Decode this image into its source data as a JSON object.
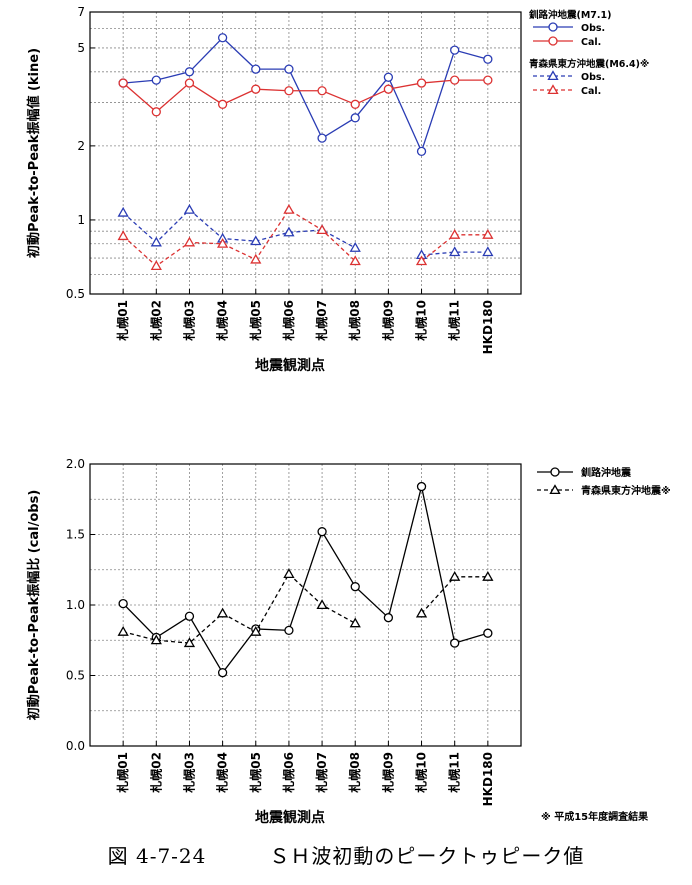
{
  "chart_data": [
    {
      "type": "line",
      "title": "",
      "xlabel": "地震観測点",
      "ylabel": "初動Peak-to-Peak振幅値 (kine)",
      "yscale": "log",
      "ylim": [
        0.5,
        7
      ],
      "yticks": [
        0.5,
        1,
        2,
        5,
        7
      ],
      "yticklabels": [
        "0.5",
        "1",
        "2",
        "5",
        "7"
      ],
      "grid": true,
      "legend_position": "right",
      "categories": [
        "札幌01",
        "札幌02",
        "札幌03",
        "札幌04",
        "札幌05",
        "札幌06",
        "札幌07",
        "札幌08",
        "札幌09",
        "札幌10",
        "札幌11",
        "HKD180"
      ],
      "legend_groups": [
        {
          "title": "釧路沖地震(M7.1)",
          "entries": [
            "Obs.",
            "Cal."
          ]
        },
        {
          "title": "青森県東方沖地震(M6.4)※",
          "entries": [
            "Obs.",
            "Cal."
          ]
        }
      ],
      "series": [
        {
          "name": "Obs.",
          "group": 0,
          "marker": "circle",
          "color": "#2a3cb4",
          "dash": false,
          "values": [
            3.6,
            3.7,
            4.0,
            5.5,
            4.1,
            4.1,
            2.15,
            2.6,
            3.8,
            1.9,
            4.9,
            4.5
          ]
        },
        {
          "name": "Cal.",
          "group": 0,
          "marker": "circle",
          "color": "#dc3232",
          "dash": false,
          "values": [
            3.6,
            2.75,
            3.6,
            2.95,
            3.4,
            3.35,
            3.35,
            2.95,
            3.4,
            3.6,
            3.7,
            3.7
          ]
        },
        {
          "name": "Obs.",
          "group": 1,
          "marker": "triangle",
          "color": "#2a3cb4",
          "dash": true,
          "values": [
            1.07,
            0.81,
            1.1,
            0.84,
            0.82,
            0.89,
            0.91,
            0.77,
            null,
            0.72,
            0.74,
            0.74
          ]
        },
        {
          "name": "Cal.",
          "group": 1,
          "marker": "triangle",
          "color": "#dc3232",
          "dash": true,
          "values": [
            0.86,
            0.65,
            0.81,
            0.8,
            0.69,
            1.1,
            0.91,
            0.68,
            null,
            0.68,
            0.87,
            0.87
          ]
        }
      ]
    },
    {
      "type": "line",
      "title": "",
      "xlabel": "地震観測点",
      "ylabel": "初動Peak-to-Peak振幅比 (cal/obs)",
      "yscale": "linear",
      "ylim": [
        0.0,
        2.0
      ],
      "yticks": [
        0.0,
        0.5,
        1.0,
        1.5,
        2.0
      ],
      "yticklabels": [
        "0.0",
        "0.5",
        "1.0",
        "1.5",
        "2.0"
      ],
      "grid": true,
      "legend_position": "right",
      "categories": [
        "札幌01",
        "札幌02",
        "札幌03",
        "札幌04",
        "札幌05",
        "札幌06",
        "札幌07",
        "札幌08",
        "札幌09",
        "札幌10",
        "札幌11",
        "HKD180"
      ],
      "series": [
        {
          "name": "釧路沖地震",
          "marker": "circle",
          "color": "#000000",
          "dash": false,
          "values": [
            1.01,
            0.77,
            0.92,
            0.52,
            0.83,
            0.82,
            1.52,
            1.13,
            0.91,
            1.84,
            0.73,
            0.8
          ]
        },
        {
          "name": "青森県東方沖地震※",
          "marker": "triangle",
          "color": "#000000",
          "dash": true,
          "values": [
            0.81,
            0.75,
            0.73,
            0.94,
            0.81,
            1.22,
            1.0,
            0.87,
            null,
            0.94,
            1.2,
            1.2
          ]
        }
      ]
    }
  ],
  "footnote": "※ 平成15年度調査結果",
  "caption": "図 4-7-24　　　ＳＨ波初動のピークトゥピーク値"
}
